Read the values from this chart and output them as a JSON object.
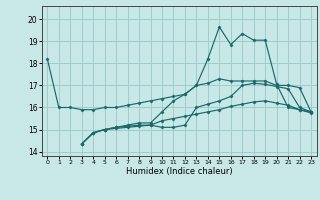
{
  "bg_color": "#c8e8e8",
  "grid_color": "#a0cccc",
  "line_color": "#1a6868",
  "xlabel": "Humidex (Indice chaleur)",
  "xlim": [
    -0.5,
    23.5
  ],
  "ylim": [
    13.8,
    20.6
  ],
  "yticks": [
    14,
    15,
    16,
    17,
    18,
    19,
    20
  ],
  "xticks": [
    0,
    1,
    2,
    3,
    4,
    5,
    6,
    7,
    8,
    9,
    10,
    11,
    12,
    13,
    14,
    15,
    16,
    17,
    18,
    19,
    20,
    21,
    22,
    23
  ],
  "lines": [
    {
      "x": [
        0,
        1,
        2,
        3,
        4,
        5,
        6,
        7,
        8,
        9,
        10,
        11,
        12,
        13,
        14,
        15,
        16,
        17,
        18,
        19,
        20,
        21,
        22,
        23
      ],
      "y": [
        18.2,
        16.0,
        16.0,
        15.9,
        15.9,
        16.0,
        16.0,
        16.1,
        16.2,
        16.3,
        16.4,
        16.5,
        16.6,
        17.0,
        18.2,
        19.65,
        18.85,
        19.35,
        19.05,
        19.05,
        17.05,
        16.0,
        15.9,
        15.8
      ]
    },
    {
      "x": [
        3,
        4,
        5,
        6,
        7,
        8,
        9,
        10,
        11,
        12,
        13,
        14,
        15,
        16,
        17,
        18,
        19,
        20,
        21,
        22,
        23
      ],
      "y": [
        14.35,
        14.85,
        15.0,
        15.05,
        15.1,
        15.15,
        15.2,
        15.4,
        15.5,
        15.6,
        15.7,
        15.8,
        15.9,
        16.05,
        16.15,
        16.25,
        16.3,
        16.2,
        16.1,
        15.9,
        15.75
      ]
    },
    {
      "x": [
        3,
        4,
        5,
        6,
        7,
        8,
        9,
        10,
        11,
        12,
        13,
        14,
        15,
        16,
        17,
        18,
        19,
        20,
        21,
        22,
        23
      ],
      "y": [
        14.35,
        14.85,
        15.0,
        15.1,
        15.15,
        15.2,
        15.2,
        15.1,
        15.1,
        15.2,
        16.0,
        16.15,
        16.3,
        16.5,
        17.0,
        17.1,
        17.05,
        16.95,
        16.85,
        16.0,
        15.8
      ]
    },
    {
      "x": [
        3,
        4,
        5,
        6,
        7,
        8,
        9,
        10,
        11,
        12,
        13,
        14,
        15,
        16,
        17,
        18,
        19,
        20,
        21,
        22,
        23
      ],
      "y": [
        14.35,
        14.85,
        15.0,
        15.1,
        15.2,
        15.3,
        15.3,
        15.8,
        16.3,
        16.6,
        17.0,
        17.1,
        17.3,
        17.2,
        17.2,
        17.2,
        17.2,
        17.0,
        17.0,
        16.9,
        15.8
      ]
    }
  ]
}
